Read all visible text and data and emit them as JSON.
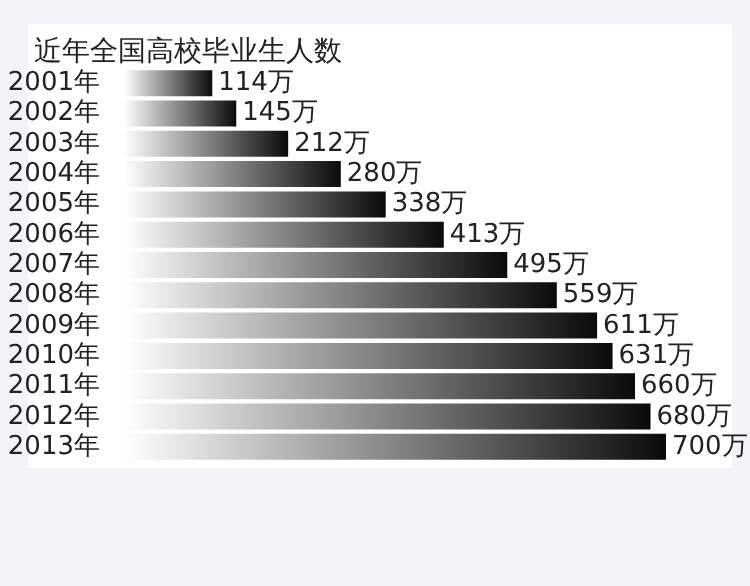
{
  "chart_data": {
    "type": "bar",
    "orientation": "horizontal",
    "title": "近年全国高校毕业生人数",
    "categories": [
      "2001年",
      "2002年",
      "2003年",
      "2004年",
      "2005年",
      "2006年",
      "2007年",
      "2008年",
      "2009年",
      "2010年",
      "2011年",
      "2012年",
      "2013年"
    ],
    "values": [
      114,
      145,
      212,
      280,
      338,
      413,
      495,
      559,
      611,
      631,
      660,
      680,
      700
    ],
    "value_labels": [
      "114万",
      "145万",
      "212万",
      "280万",
      "338万",
      "413万",
      "495万",
      "559万",
      "611万",
      "631万",
      "660万",
      "680万",
      "700万"
    ],
    "color": "#0a0a0a"
  }
}
